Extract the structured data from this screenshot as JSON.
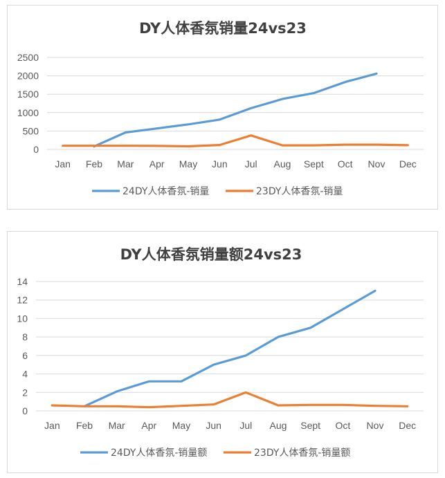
{
  "chart_data": [
    {
      "type": "line",
      "title": "DY人体香氛销量24vs23",
      "categories": [
        "Jan",
        "Feb",
        "Mar",
        "Apr",
        "May",
        "Jun",
        "Jul",
        "Aug",
        "Sept",
        "Oct",
        "Nov",
        "Dec"
      ],
      "ylim": [
        0,
        2500
      ],
      "yticks": [
        0,
        500,
        1000,
        1500,
        2000,
        2500
      ],
      "grid": true,
      "legend": "bottom",
      "series": [
        {
          "name": "24DY人体香氛-销量",
          "color": "#5b9bd5",
          "values": [
            null,
            80,
            460,
            570,
            680,
            810,
            1120,
            1370,
            1530,
            1830,
            2060,
            null
          ]
        },
        {
          "name": "23DY人体香氛-销量",
          "color": "#ed7d31",
          "values": [
            100,
            100,
            100,
            95,
            85,
            120,
            380,
            110,
            110,
            130,
            130,
            115
          ]
        }
      ]
    },
    {
      "type": "line",
      "title": "DY人体香氛销量额24vs23",
      "categories": [
        "Jan",
        "Feb",
        "Mar",
        "Apr",
        "May",
        "Jun",
        "Jul",
        "Aug",
        "Sept",
        "Oct",
        "Nov",
        "Dec"
      ],
      "ylim": [
        0,
        14
      ],
      "yticks": [
        0,
        2,
        4,
        6,
        8,
        10,
        12,
        14
      ],
      "grid": true,
      "legend": "bottom",
      "series": [
        {
          "name": "24DY人体香氛-销量额",
          "color": "#5b9bd5",
          "values": [
            null,
            0.5,
            2.1,
            3.2,
            3.2,
            5.0,
            6.0,
            8.0,
            9.0,
            11.0,
            13.0,
            null
          ]
        },
        {
          "name": "23DY人体香氛-销量额",
          "color": "#ed7d31",
          "values": [
            0.6,
            0.5,
            0.5,
            0.4,
            0.55,
            0.7,
            2.0,
            0.6,
            0.65,
            0.65,
            0.55,
            0.5
          ]
        }
      ]
    }
  ]
}
